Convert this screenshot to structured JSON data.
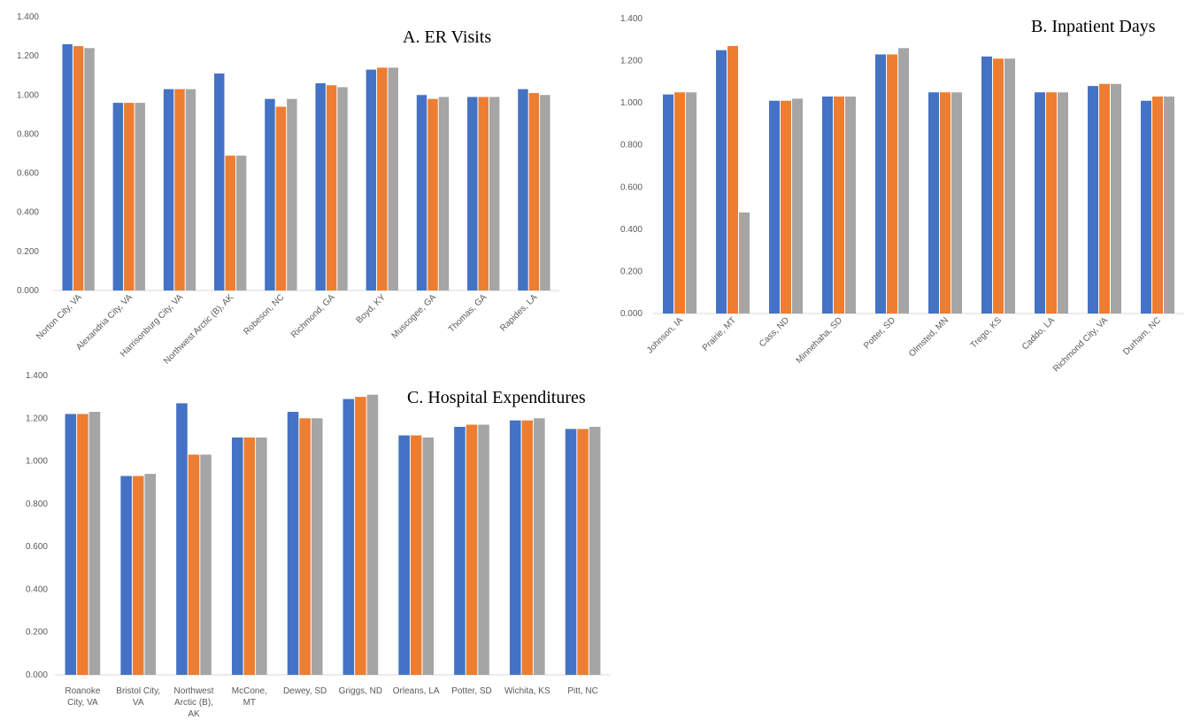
{
  "colors": {
    "series1": "#4472C4",
    "series2": "#ED7D31",
    "series3": "#A5A5A5",
    "axis": "#D9D9D9",
    "text": "#595959"
  },
  "chart_data": [
    {
      "type": "bar",
      "title": "A. ER Visits",
      "ylim": [
        0,
        1.4
      ],
      "yticks": [
        "0.000",
        "0.200",
        "0.400",
        "0.600",
        "0.800",
        "1.000",
        "1.200",
        "1.400"
      ],
      "categories": [
        "Norton City, VA",
        "Alexandria City, VA",
        "Harrisonburg City, VA",
        "Northwest Arctic (B), AK",
        "Robeson, NC",
        "Richmond, GA",
        "Boyd, KY",
        "Muscogee, GA",
        "Thomas, GA",
        "Rapides, LA"
      ],
      "series": [
        {
          "values": [
            1.26,
            0.96,
            1.03,
            1.11,
            0.98,
            1.06,
            1.13,
            1.0,
            0.99,
            1.03
          ]
        },
        {
          "values": [
            1.25,
            0.96,
            1.03,
            0.69,
            0.94,
            1.05,
            1.14,
            0.98,
            0.99,
            1.01
          ]
        },
        {
          "values": [
            1.24,
            0.96,
            1.03,
            0.69,
            0.98,
            1.04,
            1.14,
            0.99,
            0.99,
            1.0
          ]
        }
      ],
      "grid": false
    },
    {
      "type": "bar",
      "title": "B. Inpatient Days",
      "ylim": [
        0,
        1.4
      ],
      "yticks": [
        "0.000",
        "0.200",
        "0.400",
        "0.600",
        "0.800",
        "1.000",
        "1.200",
        "1.400"
      ],
      "categories": [
        "Johnson, IA",
        "Prairie, MT",
        "Cass, ND",
        "Minnehaha, SD",
        "Potter, SD",
        "Olmsted, MN",
        "Trego, KS",
        "Caddo, LA",
        "Richmond City, VA",
        "Durham, NC"
      ],
      "series": [
        {
          "values": [
            1.04,
            1.25,
            1.01,
            1.03,
            1.23,
            1.05,
            1.22,
            1.05,
            1.08,
            1.01
          ]
        },
        {
          "values": [
            1.05,
            1.27,
            1.01,
            1.03,
            1.23,
            1.05,
            1.21,
            1.05,
            1.09,
            1.03
          ]
        },
        {
          "values": [
            1.05,
            0.48,
            1.02,
            1.03,
            1.26,
            1.05,
            1.21,
            1.05,
            1.09,
            1.03
          ]
        }
      ],
      "grid": false
    },
    {
      "type": "bar",
      "title": "C. Hospital Expenditures",
      "ylim": [
        0,
        1.4
      ],
      "yticks": [
        "0.000",
        "0.200",
        "0.400",
        "0.600",
        "0.800",
        "1.000",
        "1.200",
        "1.400"
      ],
      "categories": [
        "Roanoke City, VA",
        "Bristol City, VA",
        "Northwest Arctic (B), AK",
        "McCone, MT",
        "Dewey, SD",
        "Griggs, ND",
        "Orleans, LA",
        "Potter, SD",
        "Wichita, KS",
        "Pitt, NC"
      ],
      "category_lines": [
        [
          "Roanoke",
          "City, VA"
        ],
        [
          "Bristol City,",
          "VA"
        ],
        [
          "Northwest",
          "Arctic (B),",
          "AK"
        ],
        [
          "McCone,",
          "MT"
        ],
        [
          "Dewey, SD"
        ],
        [
          "Griggs, ND"
        ],
        [
          "Orleans, LA"
        ],
        [
          "Potter, SD"
        ],
        [
          "Wichita, KS"
        ],
        [
          "Pitt, NC"
        ]
      ],
      "series": [
        {
          "values": [
            1.22,
            0.93,
            1.27,
            1.11,
            1.23,
            1.29,
            1.12,
            1.16,
            1.19,
            1.15
          ]
        },
        {
          "values": [
            1.22,
            0.93,
            1.03,
            1.11,
            1.2,
            1.3,
            1.12,
            1.17,
            1.19,
            1.15
          ]
        },
        {
          "values": [
            1.23,
            0.94,
            1.03,
            1.11,
            1.2,
            1.31,
            1.11,
            1.17,
            1.2,
            1.16
          ]
        }
      ],
      "grid": false
    }
  ]
}
